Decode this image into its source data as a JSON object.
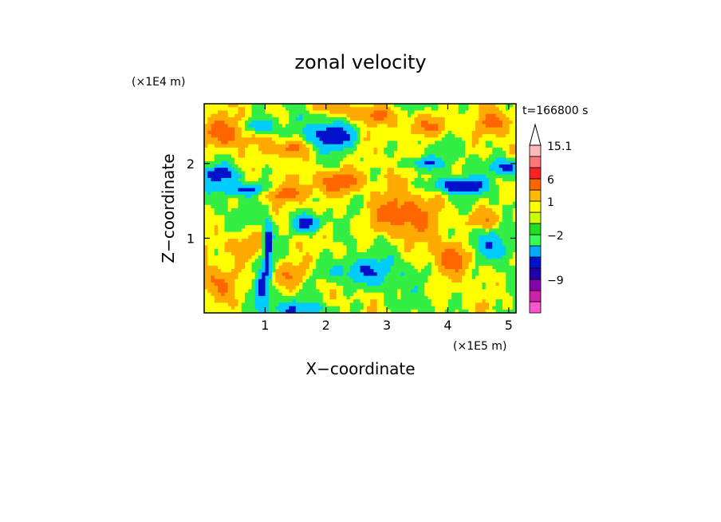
{
  "chart_data": {
    "type": "heatmap",
    "title": "zonal velocity",
    "xlabel": "X−coordinate",
    "ylabel": "Z−coordinate",
    "x_multiplier": "(×1E5 m)",
    "y_multiplier": "(×1E4 m)",
    "time_label": "t=166800 s",
    "xlim": [
      0,
      5.12
    ],
    "ylim": [
      0,
      2.8
    ],
    "x_ticks": [
      {
        "value": 1,
        "label": "1"
      },
      {
        "value": 2,
        "label": "2"
      },
      {
        "value": 3,
        "label": "3"
      },
      {
        "value": 4,
        "label": "4"
      },
      {
        "value": 5,
        "label": "5"
      }
    ],
    "y_ticks": [
      {
        "value": 1,
        "label": "1"
      },
      {
        "value": 2,
        "label": "2"
      }
    ],
    "colorbar": {
      "extend": "max",
      "levels": [
        {
          "color": "#ff55cc"
        },
        {
          "color": "#cc22aa"
        },
        {
          "color": "#8800aa"
        },
        {
          "color": "#2200aa"
        },
        {
          "color": "#0011cc"
        },
        {
          "color": "#00aaff"
        },
        {
          "color": "#33ff55"
        },
        {
          "color": "#22dd22"
        },
        {
          "color": "#ccff00"
        },
        {
          "color": "#ffff00"
        },
        {
          "color": "#ffbb00"
        },
        {
          "color": "#ff6600"
        },
        {
          "color": "#ff2222"
        },
        {
          "color": "#ff7777"
        },
        {
          "color": "#ffbbbb"
        }
      ],
      "labels": [
        {
          "text": "15.1",
          "boundary": 15
        },
        {
          "text": "6",
          "boundary": 12
        },
        {
          "text": "1",
          "boundary": 10
        },
        {
          "text": "−2",
          "boundary": 7
        },
        {
          "text": "−9",
          "boundary": 3
        }
      ]
    },
    "field_palette": {
      "strong_negative": "#0011cc",
      "negative": "#00ccff",
      "near_zero": "#33ee44",
      "weak_positive": "#ffff00",
      "positive": "#ffaa00",
      "strong_positive": "#ff6600"
    }
  }
}
